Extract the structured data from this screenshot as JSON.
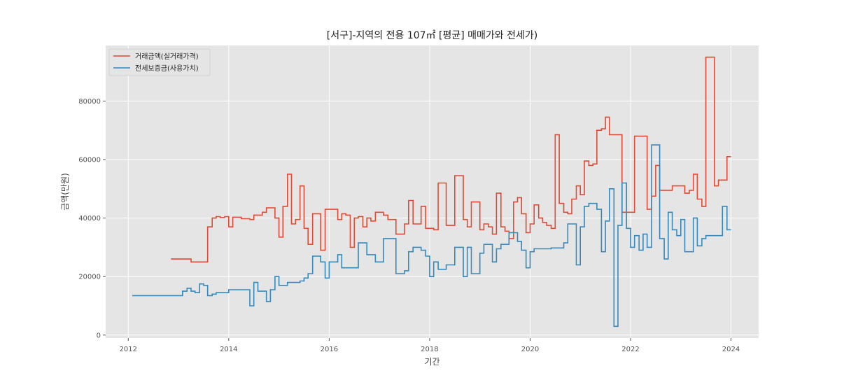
{
  "chart_data": {
    "type": "line",
    "step": "post",
    "title": "[서구]-지역의 전용 107㎡ [평균] 매매가와 전세가)",
    "xlabel": "기간",
    "ylabel": "금액(만원)",
    "xlim": [
      2011.55,
      2024.55
    ],
    "ylim": [
      -1000,
      99000
    ],
    "xticks": [
      2012,
      2014,
      2016,
      2018,
      2020,
      2022,
      2024
    ],
    "xtick_labels": [
      "2012",
      "2014",
      "2016",
      "2018",
      "2020",
      "2022",
      "2024"
    ],
    "yticks": [
      0,
      20000,
      40000,
      60000,
      80000
    ],
    "ytick_labels": [
      "0",
      "20000",
      "40000",
      "60000",
      "80000"
    ],
    "grid": true,
    "legend_position": "top-left",
    "colors": {
      "plot_bg": "#e5e5e5",
      "grid": "#ffffff",
      "sale": "#e24a33",
      "jeonse": "#348abd"
    },
    "series": [
      {
        "name": "거래금액(실거래가격)",
        "color": "#e24a33",
        "points": [
          [
            2012.85,
            26000
          ],
          [
            2013.25,
            25000
          ],
          [
            2013.58,
            37000
          ],
          [
            2013.67,
            40000
          ],
          [
            2013.75,
            40500
          ],
          [
            2013.83,
            40200
          ],
          [
            2013.92,
            40500
          ],
          [
            2014.0,
            37000
          ],
          [
            2014.08,
            40300
          ],
          [
            2014.25,
            39800
          ],
          [
            2014.42,
            39500
          ],
          [
            2014.5,
            41000
          ],
          [
            2014.67,
            42000
          ],
          [
            2014.75,
            43500
          ],
          [
            2014.92,
            40000
          ],
          [
            2015.0,
            33500
          ],
          [
            2015.08,
            44000
          ],
          [
            2015.17,
            55000
          ],
          [
            2015.25,
            38000
          ],
          [
            2015.33,
            39500
          ],
          [
            2015.42,
            51000
          ],
          [
            2015.5,
            36500
          ],
          [
            2015.58,
            31000
          ],
          [
            2015.67,
            41500
          ],
          [
            2015.83,
            29000
          ],
          [
            2015.92,
            43000
          ],
          [
            2016.17,
            39500
          ],
          [
            2016.25,
            41500
          ],
          [
            2016.33,
            41000
          ],
          [
            2016.42,
            30000
          ],
          [
            2016.5,
            40000
          ],
          [
            2016.58,
            40500
          ],
          [
            2016.67,
            37000
          ],
          [
            2016.75,
            40000
          ],
          [
            2016.83,
            39000
          ],
          [
            2016.92,
            42000
          ],
          [
            2017.08,
            41000
          ],
          [
            2017.17,
            39500
          ],
          [
            2017.33,
            34500
          ],
          [
            2017.5,
            38000
          ],
          [
            2017.58,
            46000
          ],
          [
            2017.67,
            38000
          ],
          [
            2017.83,
            44000
          ],
          [
            2017.92,
            36500
          ],
          [
            2018.08,
            36000
          ],
          [
            2018.17,
            52000
          ],
          [
            2018.33,
            37500
          ],
          [
            2018.5,
            54500
          ],
          [
            2018.67,
            39500
          ],
          [
            2018.75,
            37000
          ],
          [
            2018.83,
            45500
          ],
          [
            2019.0,
            36000
          ],
          [
            2019.08,
            38000
          ],
          [
            2019.17,
            37000
          ],
          [
            2019.25,
            34500
          ],
          [
            2019.33,
            48500
          ],
          [
            2019.42,
            37000
          ],
          [
            2019.5,
            35500
          ],
          [
            2019.58,
            33000
          ],
          [
            2019.67,
            45500
          ],
          [
            2019.75,
            47000
          ],
          [
            2019.83,
            41500
          ],
          [
            2019.92,
            35000
          ],
          [
            2020.0,
            38000
          ],
          [
            2020.08,
            44500
          ],
          [
            2020.17,
            40000
          ],
          [
            2020.25,
            38500
          ],
          [
            2020.33,
            37500
          ],
          [
            2020.42,
            36500
          ],
          [
            2020.5,
            68500
          ],
          [
            2020.58,
            45000
          ],
          [
            2020.67,
            42000
          ],
          [
            2020.75,
            41500
          ],
          [
            2020.83,
            46500
          ],
          [
            2020.92,
            51000
          ],
          [
            2021.0,
            48000
          ],
          [
            2021.08,
            59500
          ],
          [
            2021.17,
            58000
          ],
          [
            2021.25,
            58500
          ],
          [
            2021.33,
            70000
          ],
          [
            2021.42,
            70500
          ],
          [
            2021.5,
            74500
          ],
          [
            2021.58,
            68500
          ],
          [
            2021.83,
            42000
          ],
          [
            2022.08,
            68000
          ],
          [
            2022.33,
            43000
          ],
          [
            2022.42,
            47500
          ],
          [
            2022.5,
            58000
          ],
          [
            2022.58,
            49500
          ],
          [
            2022.83,
            51000
          ],
          [
            2023.08,
            48500
          ],
          [
            2023.17,
            49500
          ],
          [
            2023.25,
            55000
          ],
          [
            2023.33,
            46500
          ],
          [
            2023.42,
            44000
          ],
          [
            2023.5,
            95000
          ],
          [
            2023.67,
            51000
          ],
          [
            2023.75,
            53000
          ],
          [
            2023.92,
            61000
          ],
          [
            2024.0,
            61000
          ]
        ]
      },
      {
        "name": "전세보증금(사용가치)",
        "color": "#348abd",
        "points": [
          [
            2012.08,
            13500
          ],
          [
            2013.08,
            15000
          ],
          [
            2013.17,
            16000
          ],
          [
            2013.25,
            15000
          ],
          [
            2013.33,
            14500
          ],
          [
            2013.42,
            17500
          ],
          [
            2013.5,
            17000
          ],
          [
            2013.58,
            13500
          ],
          [
            2013.67,
            14000
          ],
          [
            2013.75,
            14500
          ],
          [
            2014.0,
            15500
          ],
          [
            2014.25,
            15500
          ],
          [
            2014.42,
            10000
          ],
          [
            2014.5,
            18000
          ],
          [
            2014.58,
            15000
          ],
          [
            2014.75,
            11500
          ],
          [
            2014.83,
            15500
          ],
          [
            2014.92,
            20000
          ],
          [
            2015.0,
            17000
          ],
          [
            2015.17,
            18000
          ],
          [
            2015.42,
            18500
          ],
          [
            2015.5,
            19500
          ],
          [
            2015.58,
            21000
          ],
          [
            2015.67,
            27000
          ],
          [
            2015.83,
            25000
          ],
          [
            2015.92,
            19500
          ],
          [
            2016.0,
            25000
          ],
          [
            2016.17,
            27500
          ],
          [
            2016.25,
            23000
          ],
          [
            2016.58,
            31500
          ],
          [
            2016.75,
            27500
          ],
          [
            2016.92,
            25000
          ],
          [
            2017.08,
            33000
          ],
          [
            2017.33,
            21000
          ],
          [
            2017.5,
            22000
          ],
          [
            2017.58,
            28500
          ],
          [
            2017.67,
            30000
          ],
          [
            2017.83,
            29000
          ],
          [
            2017.92,
            27000
          ],
          [
            2018.0,
            20000
          ],
          [
            2018.08,
            25000
          ],
          [
            2018.17,
            22500
          ],
          [
            2018.33,
            24000
          ],
          [
            2018.5,
            30000
          ],
          [
            2018.67,
            20000
          ],
          [
            2018.75,
            30000
          ],
          [
            2018.83,
            21000
          ],
          [
            2019.0,
            28000
          ],
          [
            2019.08,
            31000
          ],
          [
            2019.25,
            25000
          ],
          [
            2019.33,
            29500
          ],
          [
            2019.42,
            31000
          ],
          [
            2019.58,
            35000
          ],
          [
            2019.75,
            32000
          ],
          [
            2019.83,
            29000
          ],
          [
            2019.92,
            23000
          ],
          [
            2020.0,
            28500
          ],
          [
            2020.08,
            29500
          ],
          [
            2020.42,
            29800
          ],
          [
            2020.67,
            31500
          ],
          [
            2020.75,
            38000
          ],
          [
            2020.92,
            24000
          ],
          [
            2021.0,
            37000
          ],
          [
            2021.08,
            44000
          ],
          [
            2021.17,
            45000
          ],
          [
            2021.33,
            43000
          ],
          [
            2021.42,
            28500
          ],
          [
            2021.5,
            39000
          ],
          [
            2021.58,
            50000
          ],
          [
            2021.67,
            3000
          ],
          [
            2021.75,
            37500
          ],
          [
            2021.83,
            52000
          ],
          [
            2021.92,
            36500
          ],
          [
            2022.0,
            30000
          ],
          [
            2022.08,
            34000
          ],
          [
            2022.17,
            29000
          ],
          [
            2022.25,
            34500
          ],
          [
            2022.33,
            30000
          ],
          [
            2022.42,
            65000
          ],
          [
            2022.58,
            33000
          ],
          [
            2022.67,
            26000
          ],
          [
            2022.75,
            42000
          ],
          [
            2022.83,
            36000
          ],
          [
            2022.92,
            34000
          ],
          [
            2023.0,
            39500
          ],
          [
            2023.08,
            28500
          ],
          [
            2023.25,
            40000
          ],
          [
            2023.33,
            30500
          ],
          [
            2023.42,
            33000
          ],
          [
            2023.5,
            34000
          ],
          [
            2023.83,
            44000
          ],
          [
            2023.92,
            36000
          ],
          [
            2024.0,
            36000
          ]
        ]
      }
    ]
  }
}
